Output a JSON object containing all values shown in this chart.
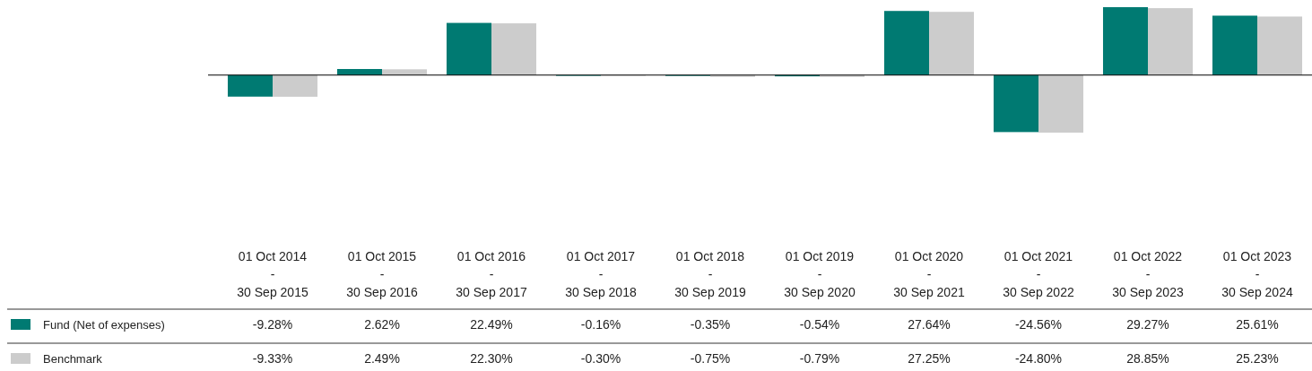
{
  "chart_data": {
    "type": "bar",
    "categories": [
      "01 Oct 2014 - 30 Sep 2015",
      "01 Oct 2015 - 30 Sep 2016",
      "01 Oct 2016 - 30 Sep 2017",
      "01 Oct 2017 - 30 Sep 2018",
      "01 Oct 2018 - 30 Sep 2019",
      "01 Oct 2019 - 30 Sep 2020",
      "01 Oct 2020 - 30 Sep 2021",
      "01 Oct 2021 - 30 Sep 2022",
      "01 Oct 2022 - 30 Sep 2023",
      "01 Oct 2023 - 30 Sep 2024"
    ],
    "series": [
      {
        "name": "Fund (Net of expenses)",
        "color": "#007a72",
        "values": [
          -9.28,
          2.62,
          22.49,
          -0.16,
          -0.35,
          -0.54,
          27.64,
          -24.56,
          29.27,
          25.61
        ],
        "value_labels": [
          "-9.28%",
          "2.62%",
          "22.49%",
          "-0.16%",
          "-0.35%",
          "-0.54%",
          "27.64%",
          "-24.56%",
          "29.27%",
          "25.61%"
        ]
      },
      {
        "name": "Benchmark",
        "color": "#cccccc",
        "values": [
          -9.33,
          2.49,
          22.3,
          -0.3,
          -0.75,
          -0.79,
          27.25,
          -24.8,
          28.85,
          25.23
        ],
        "value_labels": [
          "-9.33%",
          "2.49%",
          "22.30%",
          "-0.30%",
          "-0.75%",
          "-0.79%",
          "27.25%",
          "-24.80%",
          "28.85%",
          "25.23%"
        ]
      }
    ],
    "legend": "bottom left"
  }
}
